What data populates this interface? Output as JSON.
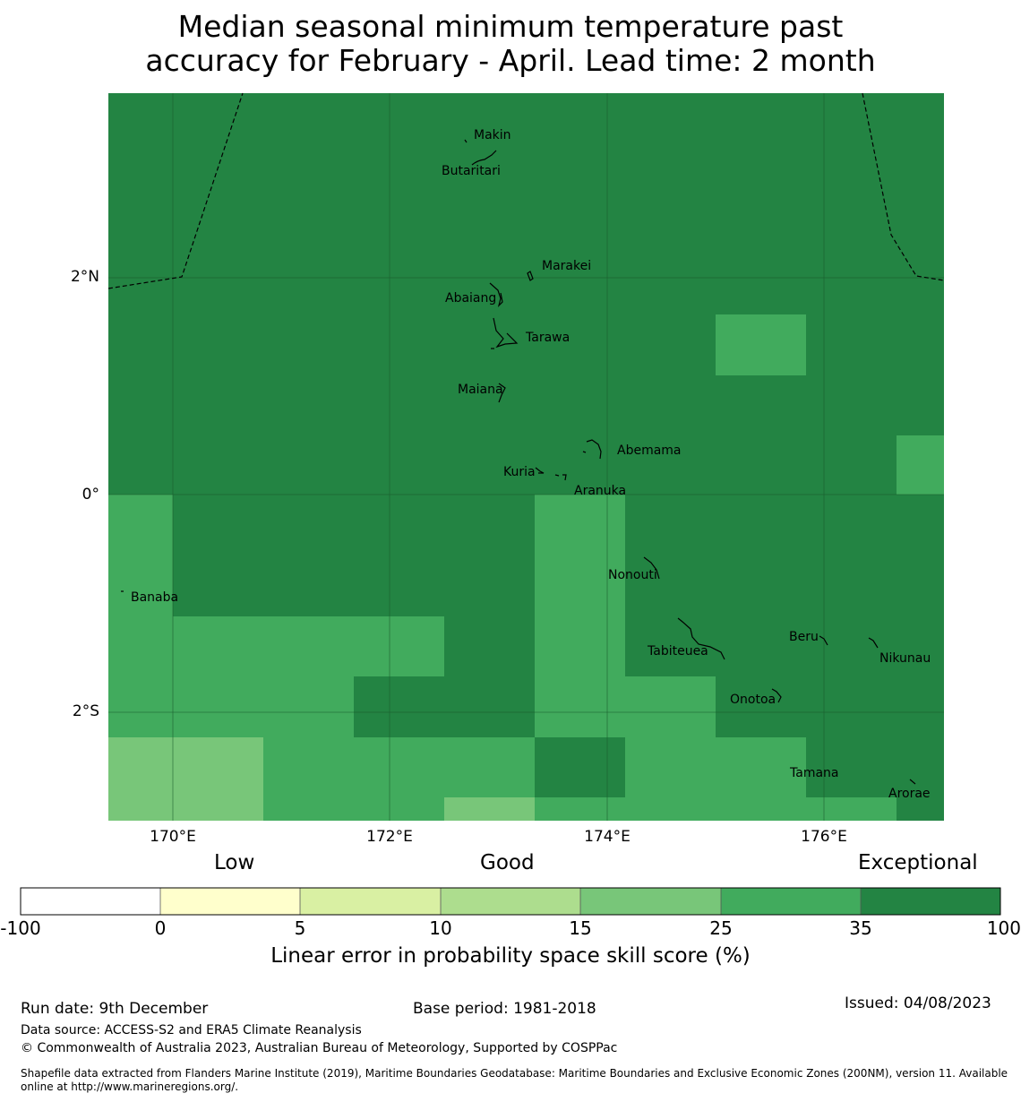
{
  "title": {
    "line1": "Median seasonal minimum temperature past",
    "line2": "accuracy for February - April. Lead time: 2 month"
  },
  "map": {
    "lon_range": [
      169.4,
      177.1
    ],
    "lat_range": [
      -2.95,
      3.75
    ],
    "x_ticks": [
      "170°E",
      "172°E",
      "174°E",
      "176°E"
    ],
    "y_ticks": [
      "2°N",
      "0°",
      "2°S"
    ],
    "islands": [
      "Makin",
      "Butaritari",
      "Marakei",
      "Abaiang",
      "Tarawa",
      "Maiana",
      "Abemama",
      "Kuria",
      "Aranuka",
      "Nonouti",
      "Banaba",
      "Beru",
      "Nikunau",
      "Tabiteuea",
      "Onotoa",
      "Tamana",
      "Arorae"
    ],
    "colors": {
      "exceptional": "#238443",
      "good_high": "#41ab5d",
      "good_mid": "#78c679",
      "good": "#addd8e",
      "low_high": "#d9f0a3",
      "low": "#ffffcc",
      "none": "#ffffff"
    }
  },
  "colorbar": {
    "categories": [
      "Low",
      "Good",
      "Exceptional"
    ],
    "ticks": [
      "-100",
      "0",
      "5",
      "10",
      "15",
      "25",
      "35",
      "100"
    ],
    "label": "Linear error in probability space skill score (%)"
  },
  "footer": {
    "run_date": "Run date: 9th December",
    "base_period": "Base period: 1981-2018",
    "issued": "Issued: 04/08/2023",
    "data_source": "Data source: ACCESS-S2 and ERA5 Climate Reanalysis",
    "copyright": "© Commonwealth of Australia 2023, Australian Bureau of Meteorology, Supported by COSPPac",
    "shapefile_line1": "Shapefile data extracted from Flanders Marine Institute (2019), Maritime Boundaries Geodatabase: Maritime Boundaries and Exclusive Economic Zones (200NM), version 11. Available",
    "shapefile_line2": "online at http://www.marineregions.org/."
  }
}
